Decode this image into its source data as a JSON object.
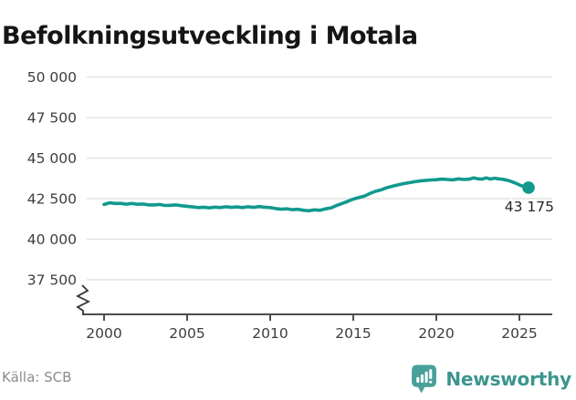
{
  "title": "Befolkningsutveckling i Motala",
  "source": "Källa: SCB",
  "logo": {
    "text": "Newsworthy"
  },
  "colors": {
    "line": "#11998e",
    "marker": "#11998e",
    "grid": "#e3e3e3",
    "axis": "#4d4d4d",
    "tick_text": "#3d3d3d",
    "title_text": "#151515",
    "source_text": "#8c8c8c",
    "annotation_text": "#262626",
    "logo_bubble": "#47a099",
    "logo_text": "#3b958d"
  },
  "chart_data": {
    "type": "line",
    "title": "Befolkningsutveckling i Motala",
    "xlabel": "",
    "ylabel": "",
    "grid": "horizontal",
    "legend": "none",
    "y_axis_break": true,
    "x_ticks": [
      2000,
      2005,
      2010,
      2015,
      2020,
      2025
    ],
    "y_ticks": [
      {
        "value": 50000,
        "label": "50 000"
      },
      {
        "value": 47500,
        "label": "47 500"
      },
      {
        "value": 45000,
        "label": "45 000"
      },
      {
        "value": 42500,
        "label": "42 500"
      },
      {
        "value": 40000,
        "label": "40 000"
      },
      {
        "value": 37500,
        "label": "37 500"
      }
    ],
    "ylim": [
      37500,
      50000
    ],
    "xlim": [
      1999,
      2027
    ],
    "last_point_label": "43 175",
    "last_point_value": 43175,
    "series": [
      {
        "name": "Befolkning",
        "points": [
          [
            2000.0,
            42140
          ],
          [
            2000.33,
            42240
          ],
          [
            2000.67,
            42200
          ],
          [
            2001.0,
            42210
          ],
          [
            2001.33,
            42160
          ],
          [
            2001.67,
            42200
          ],
          [
            2002.0,
            42150
          ],
          [
            2002.33,
            42170
          ],
          [
            2002.67,
            42120
          ],
          [
            2003.0,
            42110
          ],
          [
            2003.33,
            42140
          ],
          [
            2003.67,
            42080
          ],
          [
            2004.0,
            42090
          ],
          [
            2004.33,
            42110
          ],
          [
            2004.67,
            42060
          ],
          [
            2005.0,
            42030
          ],
          [
            2005.33,
            41990
          ],
          [
            2005.67,
            41950
          ],
          [
            2006.0,
            41970
          ],
          [
            2006.33,
            41930
          ],
          [
            2006.67,
            41980
          ],
          [
            2007.0,
            41950
          ],
          [
            2007.33,
            42000
          ],
          [
            2007.67,
            41960
          ],
          [
            2008.0,
            41990
          ],
          [
            2008.33,
            41950
          ],
          [
            2008.67,
            42000
          ],
          [
            2009.0,
            41960
          ],
          [
            2009.33,
            42010
          ],
          [
            2009.67,
            41970
          ],
          [
            2010.0,
            41950
          ],
          [
            2010.33,
            41890
          ],
          [
            2010.67,
            41850
          ],
          [
            2011.0,
            41870
          ],
          [
            2011.33,
            41820
          ],
          [
            2011.67,
            41840
          ],
          [
            2012.0,
            41780
          ],
          [
            2012.33,
            41750
          ],
          [
            2012.67,
            41810
          ],
          [
            2013.0,
            41780
          ],
          [
            2013.33,
            41870
          ],
          [
            2013.67,
            41930
          ],
          [
            2014.0,
            42080
          ],
          [
            2014.33,
            42200
          ],
          [
            2014.67,
            42330
          ],
          [
            2015.0,
            42470
          ],
          [
            2015.33,
            42560
          ],
          [
            2015.67,
            42650
          ],
          [
            2016.0,
            42820
          ],
          [
            2016.33,
            42950
          ],
          [
            2016.67,
            43040
          ],
          [
            2017.0,
            43170
          ],
          [
            2017.33,
            43260
          ],
          [
            2017.67,
            43340
          ],
          [
            2018.0,
            43420
          ],
          [
            2018.33,
            43480
          ],
          [
            2018.67,
            43540
          ],
          [
            2019.0,
            43590
          ],
          [
            2019.33,
            43620
          ],
          [
            2019.67,
            43650
          ],
          [
            2020.0,
            43670
          ],
          [
            2020.33,
            43700
          ],
          [
            2020.67,
            43680
          ],
          [
            2021.0,
            43660
          ],
          [
            2021.33,
            43720
          ],
          [
            2021.67,
            43680
          ],
          [
            2022.0,
            43700
          ],
          [
            2022.25,
            43780
          ],
          [
            2022.5,
            43720
          ],
          [
            2022.75,
            43700
          ],
          [
            2023.0,
            43780
          ],
          [
            2023.25,
            43710
          ],
          [
            2023.5,
            43760
          ],
          [
            2023.75,
            43720
          ],
          [
            2024.0,
            43690
          ],
          [
            2024.25,
            43640
          ],
          [
            2024.5,
            43560
          ],
          [
            2024.75,
            43460
          ],
          [
            2025.0,
            43350
          ],
          [
            2025.25,
            43250
          ],
          [
            2025.55,
            43175
          ]
        ]
      }
    ]
  }
}
